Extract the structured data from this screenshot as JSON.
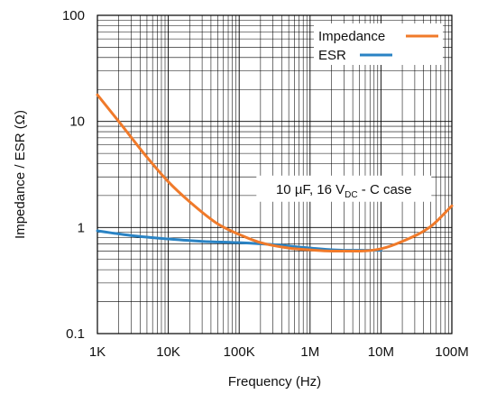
{
  "chart_data": {
    "type": "line",
    "title": "",
    "xlabel": "Frequency (Hz)",
    "ylabel": "Impedance / ESR (Ω)",
    "x_scale": "log",
    "y_scale": "log",
    "xlim": [
      1000,
      100000000
    ],
    "ylim": [
      0.1,
      100
    ],
    "grid": true,
    "legend_position": "top-right",
    "x_ticks": [
      {
        "value": 1000,
        "label": "1K"
      },
      {
        "value": 10000,
        "label": "10K"
      },
      {
        "value": 100000,
        "label": "100K"
      },
      {
        "value": 1000000,
        "label": "1M"
      },
      {
        "value": 10000000,
        "label": "10M"
      },
      {
        "value": 100000000,
        "label": "100M"
      }
    ],
    "y_ticks": [
      {
        "value": 0.1,
        "label": "0.1"
      },
      {
        "value": 1,
        "label": "1"
      },
      {
        "value": 10,
        "label": "10"
      },
      {
        "value": 100,
        "label": "100"
      }
    ],
    "annotation": {
      "text_before": "10 µF, 16 V",
      "sub": "DC",
      "text_after": " - C case",
      "x": 3000000,
      "y": 2.3
    },
    "series": [
      {
        "name": "Impedance",
        "color": "#f07a2a",
        "x": [
          1000,
          2000,
          5000,
          10000,
          20000,
          50000,
          100000,
          200000,
          500000,
          1000000,
          2000000,
          5000000,
          10000000,
          20000000,
          50000000,
          100000000
        ],
        "y": [
          17.8,
          10.0,
          4.6,
          2.7,
          1.75,
          1.08,
          0.86,
          0.72,
          0.64,
          0.615,
          0.6,
          0.6,
          0.63,
          0.74,
          1.02,
          1.6
        ]
      },
      {
        "name": "ESR",
        "color": "#2a83c4",
        "x": [
          1000,
          3000,
          10000,
          30000,
          100000,
          300000,
          1000000,
          3000000,
          10000000
        ],
        "y": [
          0.93,
          0.84,
          0.78,
          0.74,
          0.72,
          0.69,
          0.64,
          0.61,
          0.61
        ]
      }
    ]
  }
}
